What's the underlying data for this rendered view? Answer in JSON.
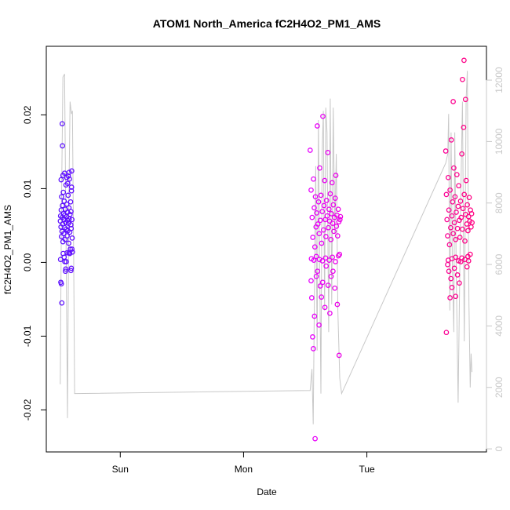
{
  "chart_data": {
    "type": "scatter",
    "title": "ATOM1 North_America fC2H4O2_PM1_AMS",
    "xlabel": "Date",
    "ylabel": "fC2H4O2_PM1_AMS",
    "x_ticks": [
      "Sun",
      "Mon",
      "Tue"
    ],
    "x_tick_days": [
      1,
      2,
      3
    ],
    "xlim_days": [
      0.4,
      3.97
    ],
    "ylim": [
      -0.0257,
      0.0293
    ],
    "y_ticks": [
      -0.02,
      -0.01,
      0.0,
      0.01,
      0.02
    ],
    "y_tick_labels": [
      "-0.02",
      "-0.01",
      "0.00",
      "0.01",
      "0.02"
    ],
    "y2_lim": [
      -100,
      13100
    ],
    "y2_ticks": [
      0,
      2000,
      4000,
      6000,
      8000,
      10000,
      12000
    ],
    "y2_tick_labels": [
      "0",
      "2000",
      "4000",
      "6000",
      "8000",
      "10000",
      "12000"
    ],
    "grid": false,
    "legend": "none",
    "colors": {
      "frame": "#000000",
      "line": "#c8c8c8",
      "start": "#5a0fff",
      "mid": "#e600ff",
      "end": "#ff0080"
    },
    "line_series": [
      [
        0.513,
        2100
      ],
      [
        0.523,
        7800
      ],
      [
        0.535,
        12100
      ],
      [
        0.548,
        12200
      ],
      [
        0.56,
        7000
      ],
      [
        0.572,
        1000
      ],
      [
        0.583,
        8200
      ],
      [
        0.593,
        11300
      ],
      [
        0.604,
        10900
      ],
      [
        0.612,
        11000
      ],
      [
        0.622,
        6200
      ],
      [
        0.63,
        1800
      ],
      [
        0.64,
        1800
      ],
      [
        2.54,
        1900
      ],
      [
        2.555,
        2600
      ],
      [
        2.565,
        800
      ],
      [
        2.575,
        5200
      ],
      [
        2.585,
        9200
      ],
      [
        2.597,
        3200
      ],
      [
        2.607,
        10700
      ],
      [
        2.617,
        6100
      ],
      [
        2.627,
        1800
      ],
      [
        2.637,
        9600
      ],
      [
        2.647,
        11000
      ],
      [
        2.657,
        4500
      ],
      [
        2.667,
        11100
      ],
      [
        2.677,
        10300
      ],
      [
        2.69,
        3800
      ],
      [
        2.703,
        11400
      ],
      [
        2.715,
        4700
      ],
      [
        2.727,
        11100
      ],
      [
        2.74,
        7000
      ],
      [
        2.752,
        9600
      ],
      [
        2.765,
        4500
      ],
      [
        2.78,
        2300
      ],
      [
        2.795,
        1800
      ],
      [
        3.64,
        9300
      ],
      [
        3.656,
        9600
      ],
      [
        3.663,
        10900
      ],
      [
        3.673,
        4500
      ],
      [
        3.683,
        10300
      ],
      [
        3.693,
        6100
      ],
      [
        3.705,
        3800
      ],
      [
        3.713,
        10300
      ],
      [
        3.725,
        5700
      ],
      [
        3.74,
        1500
      ],
      [
        3.76,
        7800
      ],
      [
        3.775,
        11300
      ],
      [
        3.79,
        3500
      ],
      [
        3.805,
        11400
      ],
      [
        3.815,
        12300
      ],
      [
        3.828,
        4700
      ],
      [
        3.838,
        2000
      ],
      [
        3.845,
        3100
      ],
      [
        3.852,
        2500
      ]
    ],
    "series": [
      {
        "values": [
          [
            0.514,
            0.0056
          ],
          [
            0.516,
            0.0063
          ],
          [
            0.519,
            0.0048
          ],
          [
            0.521,
            0.0071
          ],
          [
            0.523,
            0.0035
          ],
          [
            0.524,
            0.0089
          ],
          [
            0.527,
            0.0042
          ],
          [
            0.529,
            0.0061
          ],
          [
            0.531,
            0.0077
          ],
          [
            0.533,
            0.0052
          ],
          [
            0.535,
            0.0028
          ],
          [
            0.538,
            0.0095
          ],
          [
            0.54,
            0.0066
          ],
          [
            0.542,
            0.0039
          ],
          [
            0.544,
            0.0058
          ],
          [
            0.546,
            0.0083
          ],
          [
            0.549,
            0.0047
          ],
          [
            0.551,
            0.0064
          ],
          [
            0.553,
            0.0031
          ],
          [
            0.555,
            0.0072
          ],
          [
            0.557,
            0.0054
          ],
          [
            0.56,
            0.0105
          ],
          [
            0.562,
            0.0045
          ],
          [
            0.564,
            0.0062
          ],
          [
            0.566,
            0.0079
          ],
          [
            0.569,
            0.0036
          ],
          [
            0.571,
            0.0057
          ],
          [
            0.573,
            0.0068
          ],
          [
            0.575,
            0.0043
          ],
          [
            0.577,
            0.0091
          ],
          [
            0.58,
            0.0053
          ],
          [
            0.582,
            0.0026
          ],
          [
            0.584,
            0.0074
          ],
          [
            0.586,
            0.0059
          ],
          [
            0.588,
            0.0113
          ],
          [
            0.591,
            0.0041
          ],
          [
            0.593,
            0.0065
          ],
          [
            0.595,
            0.0018
          ],
          [
            0.597,
            0.0082
          ],
          [
            0.599,
            0.0051
          ],
          [
            0.6,
            0.0069
          ],
          [
            0.602,
            0.0046
          ],
          [
            0.604,
            0.0097
          ],
          [
            0.606,
            0.0124
          ],
          [
            0.608,
            0.0058
          ],
          [
            0.61,
            0.0033
          ],
          [
            0.516,
            0.0004
          ],
          [
            0.518,
            -0.0027
          ],
          [
            0.522,
            -0.0029
          ],
          [
            0.526,
            -0.0055
          ],
          [
            0.529,
            0.0188
          ],
          [
            0.531,
            0.0158
          ],
          [
            0.537,
            0.0012
          ],
          [
            0.545,
            0.0007
          ],
          [
            0.55,
            0.0001
          ],
          [
            0.555,
            -0.0012
          ],
          [
            0.558,
            -0.0009
          ],
          [
            0.562,
            0.0001
          ],
          [
            0.568,
            0.0013
          ],
          [
            0.574,
            0.0107
          ],
          [
            0.579,
            0.0117
          ],
          [
            0.583,
            0.0013
          ],
          [
            0.59,
            0.0012
          ],
          [
            0.6,
            -0.0011
          ],
          [
            0.603,
            -0.0008
          ],
          [
            0.608,
            0.0018
          ],
          [
            0.612,
            0.0014
          ],
          [
            0.52,
            0.0112
          ],
          [
            0.535,
            0.0118
          ],
          [
            0.548,
            0.0121
          ],
          [
            0.565,
            0.0115
          ],
          [
            0.585,
            0.0122
          ],
          [
            0.605,
            0.0102
          ]
        ]
      },
      {
        "values": [
          [
            2.54,
            0.0152
          ],
          [
            2.548,
            0.0098
          ],
          [
            2.556,
            0.0061
          ],
          [
            2.562,
            0.0034
          ],
          [
            2.567,
            0.0113
          ],
          [
            2.573,
            0.0074
          ],
          [
            2.578,
            0.0021
          ],
          [
            2.583,
            0.0089
          ],
          [
            2.588,
            0.0048
          ],
          [
            2.593,
            0.0067
          ],
          [
            2.598,
            0.0185
          ],
          [
            2.603,
            0.0052
          ],
          [
            2.608,
            0.0082
          ],
          [
            2.613,
            0.0039
          ],
          [
            2.618,
            0.0128
          ],
          [
            2.623,
            0.0057
          ],
          [
            2.628,
            0.0091
          ],
          [
            2.633,
            0.0026
          ],
          [
            2.638,
            0.0069
          ],
          [
            2.643,
            0.0198
          ],
          [
            2.648,
            0.0044
          ],
          [
            2.653,
            0.0077
          ],
          [
            2.658,
            0.0111
          ],
          [
            2.663,
            0.0058
          ],
          [
            2.668,
            0.0035
          ],
          [
            2.673,
            0.0084
          ],
          [
            2.678,
            0.0063
          ],
          [
            2.683,
            0.0149
          ],
          [
            2.688,
            0.0047
          ],
          [
            2.693,
            0.0072
          ],
          [
            2.698,
            0.0056
          ],
          [
            2.703,
            0.0093
          ],
          [
            2.708,
            0.0031
          ],
          [
            2.713,
            0.0066
          ],
          [
            2.718,
            0.0108
          ],
          [
            2.723,
            0.0053
          ],
          [
            2.728,
            0.0078
          ],
          [
            2.733,
            0.0042
          ],
          [
            2.738,
            0.0061
          ],
          [
            2.743,
            0.0087
          ],
          [
            2.748,
            0.0118
          ],
          [
            2.753,
            0.0049
          ],
          [
            2.758,
            0.0064
          ],
          [
            2.763,
            0.0036
          ],
          [
            2.768,
            0.0072
          ],
          [
            2.773,
            0.0055
          ],
          [
            2.778,
            0.0011
          ],
          [
            2.782,
            0.0058
          ],
          [
            2.786,
            0.0062
          ],
          [
            2.548,
            -0.0025
          ],
          [
            2.553,
            -0.0048
          ],
          [
            2.56,
            -0.0101
          ],
          [
            2.566,
            -0.0117
          ],
          [
            2.575,
            -0.0073
          ],
          [
            2.58,
            -0.0239
          ],
          [
            2.59,
            -0.0019
          ],
          [
            2.6,
            -0.0012
          ],
          [
            2.612,
            -0.0085
          ],
          [
            2.622,
            -0.0032
          ],
          [
            2.632,
            -0.0047
          ],
          [
            2.642,
            -0.0027
          ],
          [
            2.66,
            -0.0061
          ],
          [
            2.67,
            -0.0005
          ],
          [
            2.686,
            -0.0031
          ],
          [
            2.7,
            -0.0069
          ],
          [
            2.71,
            -0.0019
          ],
          [
            2.725,
            -0.0012
          ],
          [
            2.74,
            -0.0035
          ],
          [
            2.76,
            -0.0057
          ],
          [
            2.775,
            -0.0126
          ],
          [
            2.55,
            0.0005
          ],
          [
            2.57,
            0.0003
          ],
          [
            2.59,
            0.0008
          ],
          [
            2.615,
            0.0004
          ],
          [
            2.64,
            0.0002
          ],
          [
            2.665,
            0.0006
          ],
          [
            2.695,
            0.0003
          ],
          [
            2.72,
            0.0007
          ],
          [
            2.745,
            0.0001
          ],
          [
            2.77,
            0.0009
          ]
        ]
      },
      {
        "values": [
          [
            3.64,
            0.0151
          ],
          [
            3.645,
            0.0092
          ],
          [
            3.65,
            0.0058
          ],
          [
            3.655,
            0.0036
          ],
          [
            3.66,
            0.0115
          ],
          [
            3.665,
            0.0071
          ],
          [
            3.67,
            0.0024
          ],
          [
            3.675,
            0.0098
          ],
          [
            3.68,
            0.0047
          ],
          [
            3.685,
            0.0166
          ],
          [
            3.69,
            0.0063
          ],
          [
            3.695,
            0.0082
          ],
          [
            3.7,
            0.0039
          ],
          [
            3.705,
            0.0128
          ],
          [
            3.71,
            0.0054
          ],
          [
            3.715,
            0.0089
          ],
          [
            3.72,
            0.0031
          ],
          [
            3.725,
            0.0068
          ],
          [
            3.73,
            0.0119
          ],
          [
            3.735,
            0.0046
          ],
          [
            3.74,
            0.0076
          ],
          [
            3.745,
            0.0104
          ],
          [
            3.75,
            0.0057
          ],
          [
            3.755,
            0.0034
          ],
          [
            3.76,
            0.0083
          ],
          [
            3.765,
            0.0061
          ],
          [
            3.77,
            0.0147
          ],
          [
            3.775,
            0.0045
          ],
          [
            3.78,
            0.0073
          ],
          [
            3.785,
            0.0183
          ],
          [
            3.79,
            0.0092
          ],
          [
            3.795,
            0.0029
          ],
          [
            3.8,
            0.0065
          ],
          [
            3.805,
            0.0111
          ],
          [
            3.81,
            0.0052
          ],
          [
            3.815,
            0.0078
          ],
          [
            3.82,
            0.0043
          ],
          [
            3.825,
            0.0062
          ],
          [
            3.83,
            0.0088
          ],
          [
            3.835,
            0.0056
          ],
          [
            3.84,
            0.0071
          ],
          [
            3.845,
            0.0048
          ],
          [
            3.85,
            0.0066
          ],
          [
            3.853,
            0.0054
          ],
          [
            3.645,
            -0.0095
          ],
          [
            3.655,
            -0.0003
          ],
          [
            3.665,
            -0.0012
          ],
          [
            3.675,
            -0.0048
          ],
          [
            3.682,
            -0.0022
          ],
          [
            3.69,
            -0.0034
          ],
          [
            3.7,
            0.0218
          ],
          [
            3.71,
            -0.0008
          ],
          [
            3.72,
            -0.0046
          ],
          [
            3.735,
            -0.0017
          ],
          [
            3.75,
            -0.0028
          ],
          [
            3.762,
            0.0001
          ],
          [
            3.775,
            0.0248
          ],
          [
            3.788,
            0.0274
          ],
          [
            3.8,
            0.0221
          ],
          [
            3.812,
            -0.0006
          ],
          [
            3.825,
            0.0002
          ],
          [
            3.838,
            0.0011
          ],
          [
            3.66,
            0.0003
          ],
          [
            3.69,
            0.0005
          ],
          [
            3.72,
            0.0007
          ],
          [
            3.745,
            0.0002
          ],
          [
            3.77,
            0.0006
          ],
          [
            3.795,
            0.0004
          ],
          [
            3.82,
            0.0008
          ]
        ]
      }
    ]
  }
}
